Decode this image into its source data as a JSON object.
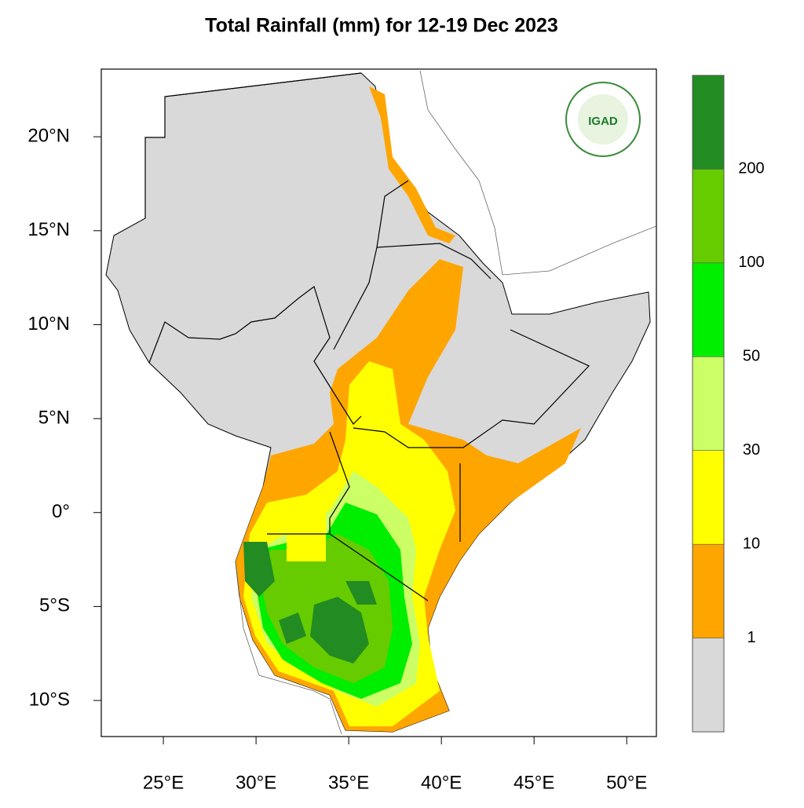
{
  "map": {
    "title": "Total Rainfall (mm) for 12-19 Dec 2023",
    "xlim": [
      21.65,
      51.6
    ],
    "ylim": [
      -11.92,
      23.6
    ],
    "xticks": [
      {
        "value": 25,
        "label": "25°E"
      },
      {
        "value": 30,
        "label": "30°E"
      },
      {
        "value": 35,
        "label": "35°E"
      },
      {
        "value": 40,
        "label": "40°E"
      },
      {
        "value": 45,
        "label": "45°E"
      },
      {
        "value": 50,
        "label": "50°E"
      }
    ],
    "yticks": [
      {
        "value": 20,
        "label": "20°N"
      },
      {
        "value": 15,
        "label": "15°N"
      },
      {
        "value": 10,
        "label": "10°N"
      },
      {
        "value": 5,
        "label": "5°N"
      },
      {
        "value": 0,
        "label": "0°"
      },
      {
        "value": -5,
        "label": "5°S"
      },
      {
        "value": -10,
        "label": "10°S"
      }
    ],
    "colorbar": {
      "levels": [
        1,
        10,
        30,
        50,
        100,
        200
      ],
      "colors": [
        "#d9d9d9",
        "#ffa500",
        "#ffff00",
        "#ccff66",
        "#00ee00",
        "#66cc00",
        "#228b22"
      ]
    },
    "logo": "IGAD"
  }
}
